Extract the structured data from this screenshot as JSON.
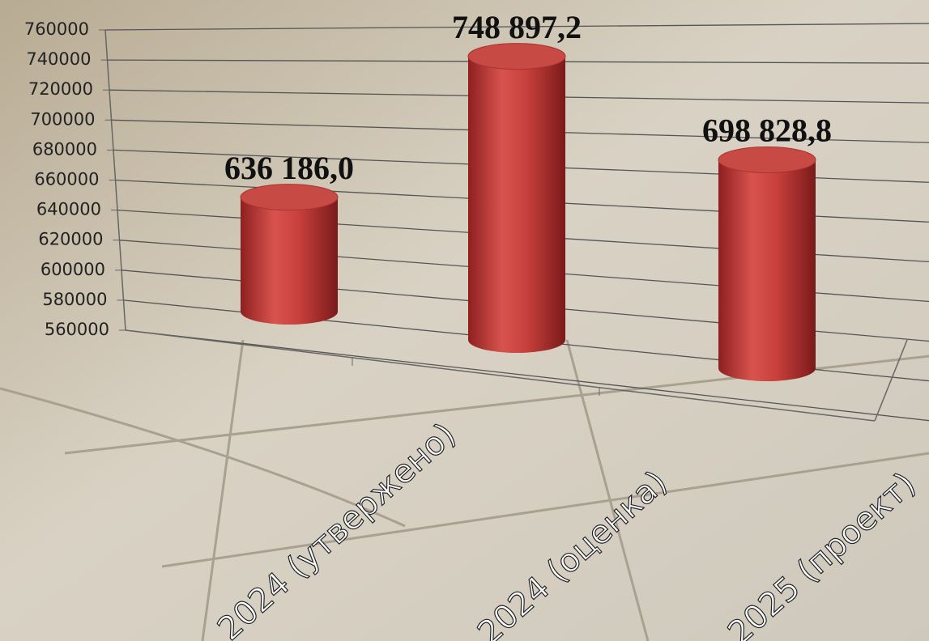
{
  "chart_data": {
    "type": "bar",
    "categories": [
      "2024 (утвержено)",
      "2024 (оценка)",
      "2025 (проект)"
    ],
    "values": [
      636186.0,
      748897.2,
      698828.8
    ],
    "value_labels": [
      "636 186,0",
      "748 897,2",
      "698 828,8"
    ],
    "color": "#c94040",
    "ylim": [
      560000,
      760000
    ],
    "yticks": [
      560000,
      580000,
      600000,
      620000,
      640000,
      660000,
      680000,
      700000,
      720000,
      740000,
      760000
    ],
    "grid": true
  }
}
